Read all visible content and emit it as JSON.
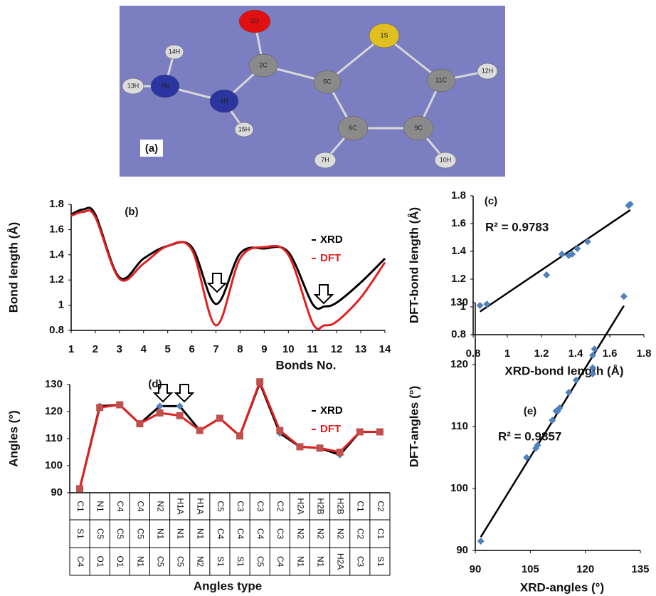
{
  "molecule": {
    "label": "(a)",
    "atoms": [
      "3O",
      "1S",
      "14H",
      "2C",
      "5C",
      "11C",
      "12H",
      "13H",
      "8N",
      "4N",
      "15H",
      "6C",
      "9C",
      "7H",
      "10H"
    ]
  },
  "chart_data": [
    {
      "type": "line",
      "label": "(b)",
      "y_label": "Bond length (Å)",
      "x_label": "Bonds No.",
      "smooth": true,
      "x": [
        1,
        1.5,
        2,
        3,
        4,
        5,
        6,
        7,
        8,
        9,
        10,
        11,
        11.5,
        12,
        13,
        14
      ],
      "series": [
        {
          "name": "XRD",
          "color": "#000000",
          "values": [
            1.72,
            1.76,
            1.72,
            1.22,
            1.37,
            1.47,
            1.46,
            1.01,
            1.41,
            1.45,
            1.42,
            1.01,
            0.99,
            1.02,
            1.18,
            1.37
          ]
        },
        {
          "name": "DFT",
          "color": "#e02020",
          "values": [
            1.71,
            1.74,
            1.7,
            1.21,
            1.33,
            1.47,
            1.44,
            0.84,
            1.37,
            1.46,
            1.4,
            0.86,
            0.84,
            0.87,
            1.06,
            1.34
          ]
        }
      ],
      "xlim": [
        1,
        14
      ],
      "xticks": [
        1,
        2,
        3,
        4,
        5,
        6,
        7,
        8,
        9,
        10,
        11,
        12,
        13,
        14
      ],
      "ylim": [
        0.8,
        1.8
      ],
      "yticks": [
        0.8,
        1,
        1.2,
        1.4,
        1.6,
        1.8
      ]
    },
    {
      "type": "scatter",
      "label": "(c)",
      "annotation": "R² = 0.9783",
      "x_label": "XRD-bond length (Å)",
      "y_label": "DFT-bond length (Å)",
      "color": "#4f81bd",
      "trendline": true,
      "x": [
        0.84,
        0.88,
        1.23,
        1.32,
        1.36,
        1.38,
        1.41,
        1.47,
        1.71,
        1.72
      ],
      "y": [
        1.01,
        1.02,
        1.23,
        1.38,
        1.37,
        1.38,
        1.42,
        1.47,
        1.73,
        1.74
      ],
      "xlim": [
        0.8,
        1.8
      ],
      "xticks": [
        0.8,
        1,
        1.2,
        1.4,
        1.6,
        1.8
      ],
      "ylim": [
        0.8,
        1.8
      ],
      "yticks": [
        0.8,
        1,
        1.2,
        1.4,
        1.6,
        1.8
      ]
    },
    {
      "type": "line",
      "label": "(d)",
      "y_label": "Angles (°)",
      "x_label": "Angles type",
      "categories": [
        [
          "C1",
          "S1",
          "C4"
        ],
        [
          "N1",
          "C5",
          "O1"
        ],
        [
          "C4",
          "C5",
          "O1"
        ],
        [
          "C4",
          "C5",
          "N1"
        ],
        [
          "N2",
          "N1",
          "C5"
        ],
        [
          "H1A",
          "N1",
          "C5"
        ],
        [
          "H1A",
          "N1",
          "N2"
        ],
        [
          "C5",
          "C4",
          "S1"
        ],
        [
          "C3",
          "C4",
          "S1"
        ],
        [
          "C3",
          "C4",
          "C5"
        ],
        [
          "C2",
          "C3",
          "C4"
        ],
        [
          "H2A",
          "N2",
          "N1"
        ],
        [
          "H2B",
          "N2",
          "N1"
        ],
        [
          "H2B",
          "N2",
          "H2A"
        ],
        [
          "C1",
          "C2",
          "C3"
        ],
        [
          "C2",
          "C1",
          "S1"
        ]
      ],
      "series": [
        {
          "name": "XRD",
          "color": "#000000",
          "marker": "diamond",
          "marker_color": "#4f81bd",
          "values": [
            91.5,
            122,
            122.5,
            115.5,
            122,
            122,
            113,
            117.5,
            111,
            130.5,
            112,
            107,
            106.5,
            104,
            112.5,
            112.5
          ]
        },
        {
          "name": "DFT",
          "color": "#e02020",
          "marker": "square",
          "marker_color": "#c0504d",
          "values": [
            91.5,
            121.5,
            122.5,
            115.5,
            119.5,
            118.5,
            113,
            117.5,
            111,
            131,
            113,
            107,
            106.5,
            105,
            112.5,
            112.5
          ]
        }
      ],
      "ylim": [
        90,
        130
      ],
      "yticks": [
        90,
        100,
        110,
        120,
        130
      ]
    },
    {
      "type": "scatter",
      "label": "(e)",
      "annotation": "R² = 0.9857",
      "x_label": "XRD-angles (°)",
      "y_label": "DFT-angles (°)",
      "color": "#4f81bd",
      "trendline": true,
      "x": [
        91.5,
        104,
        106.5,
        107,
        111,
        112,
        112.5,
        113,
        115.5,
        117.5,
        122,
        122,
        122,
        122.5,
        130.5
      ],
      "y": [
        91.5,
        105,
        106.5,
        107,
        111,
        112.5,
        112.5,
        113,
        115.5,
        117.5,
        119.5,
        118.5,
        121.5,
        122.5,
        131
      ],
      "xlim": [
        90,
        135
      ],
      "xticks": [
        90,
        105,
        120,
        135
      ],
      "ylim": [
        90,
        130
      ],
      "yticks": [
        90,
        100,
        110,
        120,
        130
      ]
    }
  ]
}
